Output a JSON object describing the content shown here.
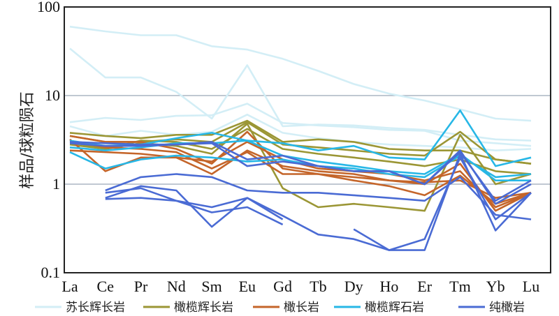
{
  "chart_data": {
    "type": "line",
    "ylabel": "样品/球粒陨石",
    "yscale": "log",
    "ylim": [
      0.1,
      100
    ],
    "y_ticks": [
      "0.1",
      "1",
      "10",
      "100"
    ],
    "categories": [
      "La",
      "Ce",
      "Pr",
      "Nd",
      "Sm",
      "Eu",
      "Gd",
      "Tb",
      "Dy",
      "Ho",
      "Er",
      "Tm",
      "Yb",
      "Lu"
    ],
    "grid": true,
    "legend_position": "bottom",
    "groups": [
      {
        "name": "苏长辉长岩",
        "color": "#d3eef6",
        "lines": [
          [
            60,
            53,
            48,
            48,
            36,
            33,
            26,
            19,
            13.5,
            10.5,
            8.8,
            7,
            5.5,
            5.2
          ],
          [
            34,
            16,
            16,
            11,
            5.5,
            22,
            4.5,
            4.7,
            4.6,
            4.3,
            4.1,
            3.6,
            3.2,
            3.1
          ],
          [
            5.0,
            5.6,
            5.3,
            5.9,
            6.0,
            8.1,
            4.9,
            4.6,
            4.4,
            4.1,
            4.0,
            3.1,
            2.9,
            2.7
          ],
          [
            4.5,
            3.5,
            4.0,
            3.6,
            3.9,
            6.1,
            3.8,
            3.3,
            3.0,
            2.8,
            2.7,
            2.6,
            2.4,
            2.5
          ]
        ]
      },
      {
        "name": "橄榄辉长岩",
        "color": "#9b9635",
        "lines": [
          [
            3.8,
            3.5,
            3.3,
            3.6,
            3.6,
            5.2,
            3.0,
            3.2,
            3.0,
            2.5,
            2.4,
            2.4,
            1.9,
            1.7
          ],
          [
            3.5,
            3.0,
            3.0,
            3.2,
            3.0,
            5.0,
            2.8,
            2.6,
            2.4,
            2.2,
            2.1,
            3.9,
            1.9,
            1.7
          ],
          [
            3.0,
            2.5,
            3.1,
            3.0,
            2.5,
            4.2,
            2.5,
            2.2,
            2.0,
            1.8,
            1.6,
            1.9,
            1.4,
            1.3
          ],
          [
            2.8,
            2.5,
            2.9,
            2.7,
            2.2,
            4.8,
            0.9,
            0.55,
            0.6,
            0.55,
            0.5,
            3.6,
            1.0,
            1.3
          ]
        ]
      },
      {
        "name": "橄长岩",
        "color": "#c4652a",
        "lines": [
          [
            3.5,
            3.0,
            3.0,
            2.5,
            1.7,
            3.9,
            1.5,
            1.3,
            1.2,
            1.1,
            1.0,
            1.7,
            0.5,
            0.8
          ],
          [
            3.1,
            2.6,
            2.5,
            2.3,
            1.5,
            2.3,
            1.3,
            1.3,
            1.1,
            0.95,
            0.75,
            1.25,
            0.6,
            0.8
          ],
          [
            2.4,
            2.3,
            2.2,
            2.0,
            1.3,
            2.4,
            1.6,
            1.4,
            1.3,
            1.1,
            1.05,
            1.1,
            0.7,
            0.8
          ],
          [
            3.2,
            1.4,
            2.0,
            2.0,
            1.8,
            3.0,
            1.9,
            1.5,
            1.4,
            1.3,
            1.1,
            1.4,
            0.55,
            0.8
          ]
        ]
      },
      {
        "name": "橄榄辉石岩",
        "color": "#27b7e6",
        "lines": [
          [
            3.1,
            2.7,
            2.8,
            3.3,
            3.8,
            3.1,
            2.9,
            2.4,
            2.7,
            2.0,
            1.9,
            6.8,
            1.6,
            2.0
          ],
          [
            2.3,
            1.5,
            1.9,
            2.1,
            2.0,
            1.8,
            1.9,
            1.6,
            1.5,
            1.3,
            1.2,
            2.1,
            1.2,
            1.3
          ],
          [
            2.6,
            2.4,
            2.6,
            2.9,
            2.9,
            3.1,
            2.1,
            1.8,
            1.6,
            1.4,
            1.3,
            2.2,
            1.1,
            1.1
          ]
        ]
      },
      {
        "name": "纯橄岩",
        "color": "#4a6bd4",
        "lines": [
          [
            3.0,
            2.9,
            2.8,
            2.8,
            3.0,
            1.9,
            2.1,
            1.6,
            1.4,
            1.4,
            1.0,
            2.3,
            0.65,
            1.1
          ],
          [
            2.9,
            2.7,
            2.7,
            2.8,
            2.9,
            1.6,
            1.8,
            1.6,
            1.4,
            1.4,
            1.0,
            2.4,
            0.6,
            1.0
          ],
          [
            null,
            0.85,
            1.2,
            1.3,
            1.2,
            0.85,
            0.8,
            0.8,
            0.75,
            0.7,
            0.65,
            1.2,
            0.45,
            0.4
          ],
          [
            null,
            0.7,
            0.95,
            0.85,
            0.33,
            0.7,
            0.44,
            0.27,
            0.24,
            0.18,
            0.18,
            2.2,
            0.3,
            0.8
          ],
          [
            null,
            0.8,
            0.9,
            0.65,
            0.55,
            0.7,
            0.4,
            null,
            null,
            null,
            null,
            null,
            null,
            null
          ],
          [
            null,
            0.68,
            0.7,
            0.65,
            0.48,
            0.55,
            0.35,
            null,
            null,
            null,
            null,
            null,
            null,
            null
          ],
          [
            null,
            null,
            null,
            null,
            null,
            null,
            null,
            null,
            0.31,
            0.18,
            0.24,
            2.0,
            0.4,
            0.8
          ]
        ]
      }
    ]
  }
}
